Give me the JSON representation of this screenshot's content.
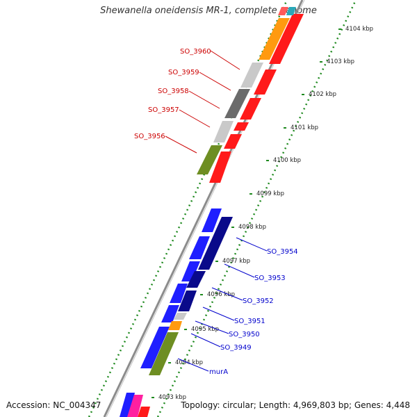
{
  "title": "Shewanella oneidensis MR-1, complete genome",
  "footer": {
    "accession": "Accession: NC_004347",
    "topology": "Topology: circular; Length: 4,969,803 bp; Genes: 4,448"
  },
  "colors": {
    "plus_strand_label": "#cc0000",
    "minus_strand_label": "#0000cc",
    "tick": "#1f8a1f",
    "backbone": "#8c8c8c"
  },
  "ticks": [
    "4093 kbp",
    "4094 kbp",
    "4095 kbp",
    "4096 kbp",
    "4097 kbp",
    "4098 kbp",
    "4099 kbp",
    "4100 kbp",
    "4101 kbp",
    "4102 kbp",
    "4103 kbp",
    "4104 kbp"
  ],
  "gene_labels_forward": [
    "SO_3960",
    "SO_3959",
    "SO_3958",
    "SO_3957",
    "SO_3956"
  ],
  "gene_labels_reverse": [
    "SO_3954",
    "SO_3953",
    "SO_3952",
    "SO_3951",
    "SO_3950",
    "SO_3949",
    "murA"
  ]
}
